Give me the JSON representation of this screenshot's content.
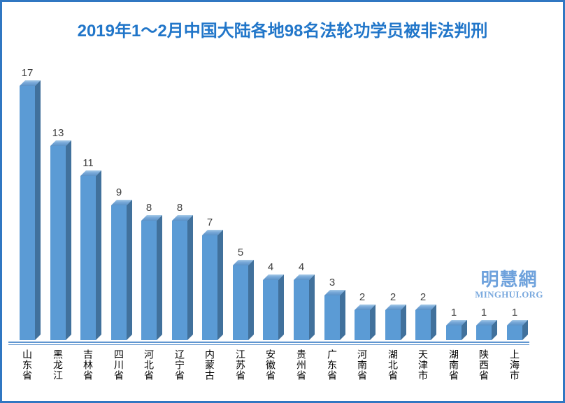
{
  "chart_data": {
    "type": "bar",
    "style": "3d-column",
    "title": "2019年1～2月中国大陆各地98名法轮功学员被非法判刑",
    "categories": [
      "山东省",
      "黑龙江",
      "吉林省",
      "四川省",
      "河北省",
      "辽宁省",
      "内蒙古",
      "江苏省",
      "安徽省",
      "贵州省",
      "广东省",
      "河南省",
      "湖北省",
      "天津市",
      "湖南省",
      "陕西省",
      "上海市"
    ],
    "values": [
      17,
      13,
      11,
      9,
      8,
      8,
      7,
      5,
      4,
      4,
      3,
      2,
      2,
      2,
      1,
      1,
      1
    ],
    "total": 98,
    "xlabel": "",
    "ylabel": "",
    "ylim": [
      0,
      17
    ],
    "grid": false,
    "legend": false,
    "data_labels": true,
    "x_label_orientation": "vertical"
  },
  "watermark": {
    "logo_text": "明慧網",
    "site_text": "MINGHUI.ORG"
  },
  "colors": {
    "frame_border": "#3077c2",
    "title_text": "#2176c9",
    "bar_front": "#5b9bd5",
    "bar_side": "#41719c",
    "bar_top_highlight": "#a8cbe9",
    "axis_line": "#6096d0",
    "value_label": "#3f3f3f",
    "category_label": "#000000",
    "watermark_text": "#6fa2dc",
    "background": "#ffffff"
  }
}
